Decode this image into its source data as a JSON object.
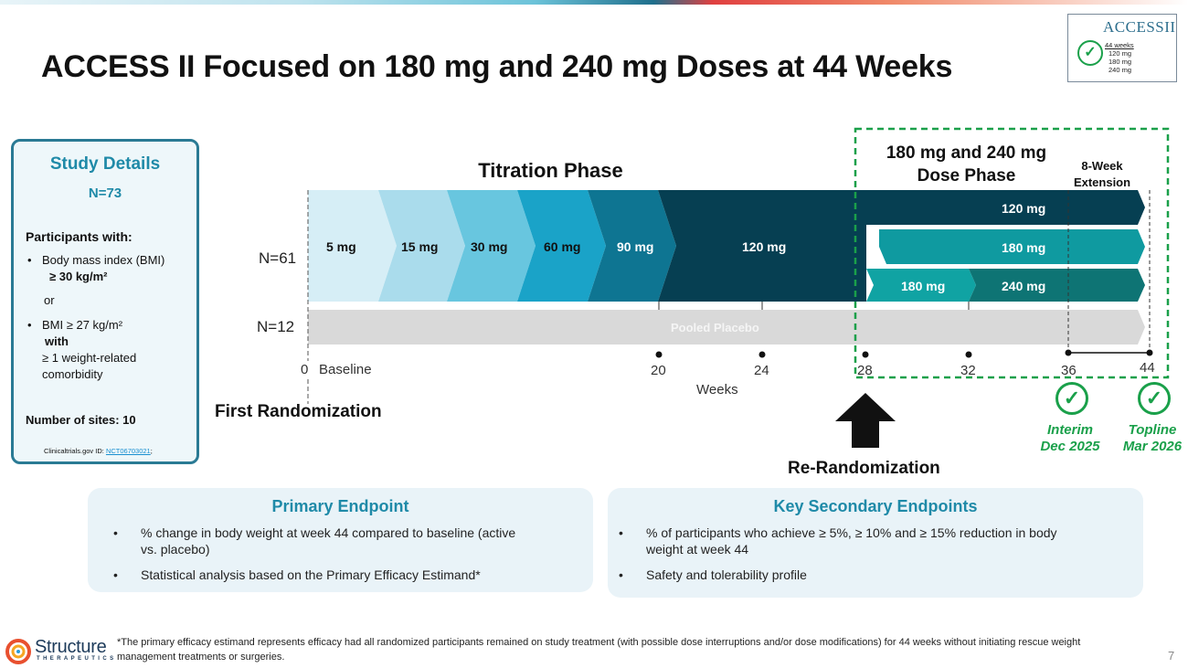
{
  "title": "ACCESS II Focused on 180 mg and 240 mg Doses at 44 Weeks",
  "logo": {
    "title": "ACCESSII",
    "weeks": "44 weeks",
    "doses": [
      "120 mg",
      "180 mg",
      "240 mg"
    ],
    "check": "✓"
  },
  "study_details": {
    "heading": "Study Details",
    "n": "N=73",
    "participants_heading": "Participants with:",
    "bullet1_line1": "Body mass index (BMI)",
    "bullet1_line2": "≥ 30 kg/m²",
    "or": "or",
    "bullet2_line1": "BMI ≥ 27 kg/m²",
    "bullet2_line2": "with",
    "bullet2_line3": "≥ 1 weight-related",
    "bullet2_line4": "comorbidity",
    "sites": "Number of sites: 10",
    "ct_prefix": "Clinicaltrials.gov ID: ",
    "ct_id": "NCT06703021",
    "ct_suffix": ";",
    "bullet_char": "•"
  },
  "diagram": {
    "titration_title": "Titration Phase",
    "dose_phase_line1": "180 mg and 240 mg",
    "dose_phase_line2": "Dose Phase",
    "extension_line1": "8-Week",
    "extension_line2": "Extension",
    "n_active": "N=61",
    "n_placebo": "N=12",
    "titration_doses": [
      "5 mg",
      "15 mg",
      "30 mg",
      "60 mg",
      "90 mg",
      "120 mg"
    ],
    "arm1": "120 mg",
    "arm2": "180 mg",
    "arm3a": "180 mg",
    "arm3b": "240 mg",
    "placebo": "Pooled Placebo",
    "weeks_label": "Weeks",
    "week0": "0",
    "baseline": "Baseline",
    "week_ticks": [
      "20",
      "24",
      "28",
      "32",
      "36",
      "44"
    ],
    "first_randomization": "First Randomization",
    "re_randomization": "Re-Randomization",
    "interim_line1": "Interim",
    "interim_line2": "Dec 2025",
    "topline_line1": "Topline",
    "topline_line2": "Mar 2026",
    "check": "✓",
    "colors": {
      "seg1": "#d6eef6",
      "seg2": "#aadcec",
      "seg3": "#68c6df",
      "seg4": "#1aa3c8",
      "seg5": "#0e7592",
      "seg6": "#063f52",
      "arm2": "#0f9aa0",
      "arm3a": "#10a3a3",
      "arm3b": "#0e7474",
      "placebo": "#d9d9d9",
      "dash_box": "#1aa04a"
    }
  },
  "primary": {
    "heading": "Primary Endpoint",
    "b1_line1": "% change in body weight at week 44 compared to baseline (active",
    "b1_line2": "vs. placebo)",
    "b2": "Statistical analysis based on the Primary Efficacy Estimand*"
  },
  "secondary": {
    "heading": "Key Secondary Endpoints",
    "b1_line1": "% of participants who achieve ≥ 5%, ≥ 10% and ≥ 15% reduction in body",
    "b1_line2": "weight at week 44",
    "b2": "Safety and tolerability profile"
  },
  "footnote": "*The primary efficacy estimand represents efficacy had all randomized participants remained on study treatment (with possible dose interruptions and/or dose modifications) for 44 weeks without initiating rescue weight management treatments or surgeries.",
  "brand": {
    "name": "Structure",
    "sub": "THERAPEUTICS"
  },
  "page_number": "7"
}
